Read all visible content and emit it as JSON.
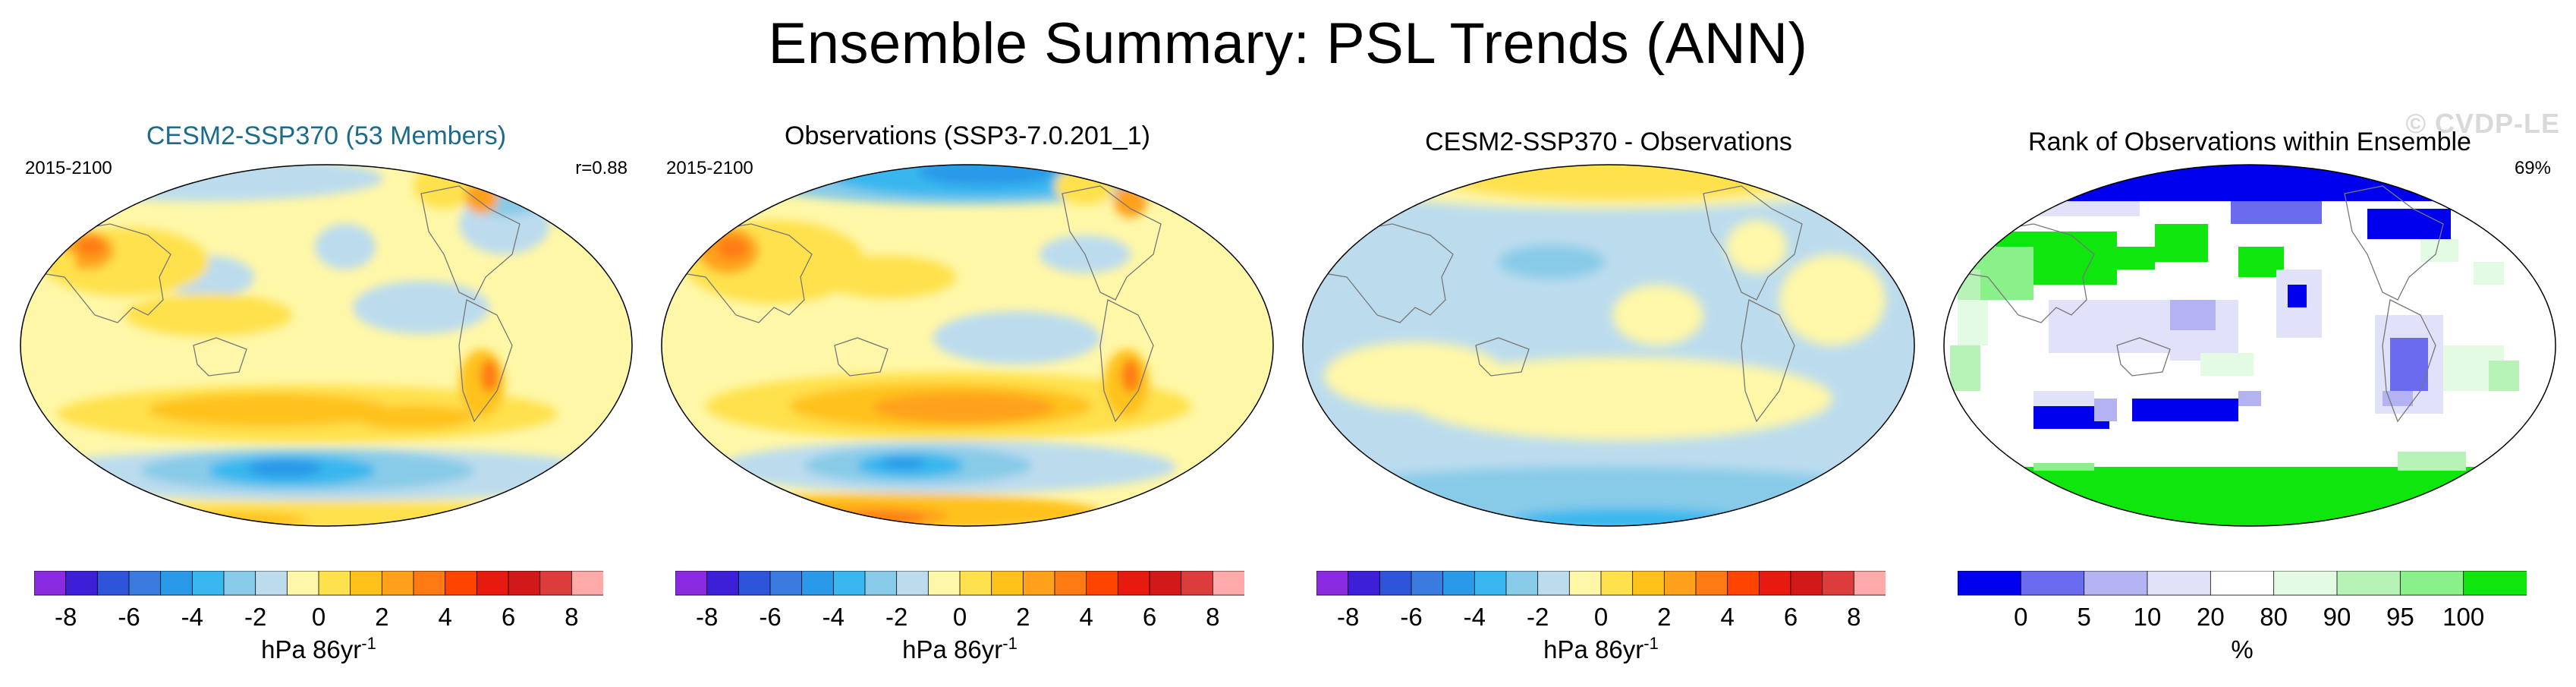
{
  "title": "Ensemble Summary: PSL Trends (ANN)",
  "watermark": "© CVDP-LE",
  "panels": [
    {
      "title": "CESM2-SSP370 (53 Members)",
      "left_label": "2015-2100",
      "right_label": "r=0.88",
      "colorbar": {
        "colors": [
          "#8a2be2",
          "#3c1fd6",
          "#2e54d9",
          "#3a7be0",
          "#2a9ae8",
          "#39b7ef",
          "#88cbe8",
          "#bcdcee",
          "#fff7a8",
          "#ffe14d",
          "#ffc21a",
          "#ffa11a",
          "#ff7a12",
          "#ff4400",
          "#e61a0f",
          "#d11919",
          "#dd3c3c",
          "#ffaaaa"
        ],
        "ticks": [
          "-8",
          "-6",
          "-4",
          "-2",
          "0",
          "2",
          "4",
          "6",
          "8"
        ],
        "unit": "hPa 86yr",
        "unit_sup": "-1"
      }
    },
    {
      "title": "Observations (SSP3-7.0.201_1)",
      "left_label": "2015-2100",
      "right_label": "",
      "colorbar": {
        "colors": [
          "#8a2be2",
          "#3c1fd6",
          "#2e54d9",
          "#3a7be0",
          "#2a9ae8",
          "#39b7ef",
          "#88cbe8",
          "#bcdcee",
          "#fff7a8",
          "#ffe14d",
          "#ffc21a",
          "#ffa11a",
          "#ff7a12",
          "#ff4400",
          "#e61a0f",
          "#d11919",
          "#dd3c3c",
          "#ffaaaa"
        ],
        "ticks": [
          "-8",
          "-6",
          "-4",
          "-2",
          "0",
          "2",
          "4",
          "6",
          "8"
        ],
        "unit": "hPa 86yr",
        "unit_sup": "-1"
      }
    },
    {
      "title": "CESM2-SSP370 - Observations",
      "left_label": "",
      "right_label": "",
      "colorbar": {
        "colors": [
          "#8a2be2",
          "#3c1fd6",
          "#2e54d9",
          "#3a7be0",
          "#2a9ae8",
          "#39b7ef",
          "#88cbe8",
          "#bcdcee",
          "#fff7a8",
          "#ffe14d",
          "#ffc21a",
          "#ffa11a",
          "#ff7a12",
          "#ff4400",
          "#e61a0f",
          "#d11919",
          "#dd3c3c",
          "#ffaaaa"
        ],
        "ticks": [
          "-8",
          "-6",
          "-4",
          "-2",
          "0",
          "2",
          "4",
          "6",
          "8"
        ],
        "unit": "hPa 86yr",
        "unit_sup": "-1"
      }
    },
    {
      "title": "Rank of Observations within Ensemble",
      "left_label": "",
      "right_label": "69%",
      "colorbar": {
        "colors": [
          "#0000ee",
          "#6b6bf0",
          "#b3b3f2",
          "#e1e1fa",
          "#ffffff",
          "#e3fbe3",
          "#b7f3b7",
          "#8af08a",
          "#0ee60e"
        ],
        "ticks": [
          "0",
          "5",
          "10",
          "20",
          "80",
          "90",
          "95",
          "100"
        ],
        "unit": "%",
        "unit_sup": ""
      }
    }
  ]
}
